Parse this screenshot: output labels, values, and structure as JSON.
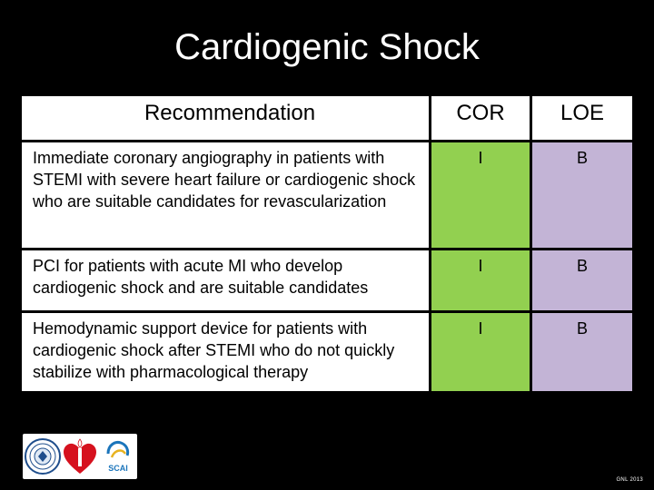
{
  "slide": {
    "title": "Cardiogenic Shock",
    "table": {
      "headers": {
        "recommendation": "Recommendation",
        "cor": "COR",
        "loe": "LOE"
      },
      "rows": [
        {
          "recommendation": "Immediate coronary angiography in patients with STEMI with severe heart failure or cardiogenic shock who are suitable candidates for revascularization",
          "cor": "I",
          "loe": "B"
        },
        {
          "recommendation": "PCI for patients with acute MI who develop cardiogenic shock and are suitable candidates",
          "cor": "I",
          "loe": "B"
        },
        {
          "recommendation": "Hemodynamic support device for patients with cardiogenic shock after STEMI who do not quickly stabilize with pharmacological therapy",
          "cor": "I",
          "loe": "B"
        }
      ]
    },
    "logos": {
      "icons": [
        "acc-seal-icon",
        "aha-heart-torch-icon",
        "scai-logo-icon"
      ],
      "scai_text": "SCAI"
    },
    "source_note": "GNL 2013",
    "colors": {
      "background": "#000000",
      "header_bg": "#ffffff",
      "cor_bg": "#92d050",
      "loe_bg": "#c3b4d6"
    }
  }
}
